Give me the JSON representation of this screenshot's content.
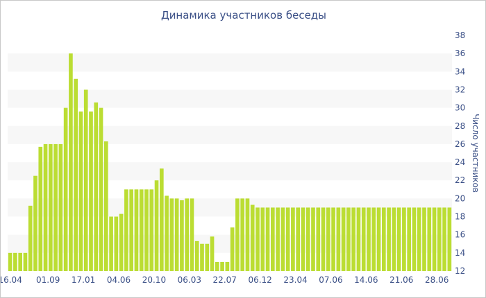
{
  "chart_data": {
    "type": "bar",
    "title": "Динамика участников беседы",
    "xlabel": "",
    "ylabel": "Число участников",
    "ylim": [
      12,
      38
    ],
    "y_ticks": [
      12,
      14,
      16,
      18,
      20,
      22,
      24,
      26,
      28,
      30,
      32,
      34,
      36,
      38
    ],
    "y_axis_side": "right",
    "grid": "alternating horizontal bands",
    "bar_color": "#bbdd33",
    "band_color": "#f7f7f7",
    "x_tick_labels": [
      "16.04",
      "01.09",
      "17.01",
      "04.06",
      "20.10",
      "06.03",
      "22.07",
      "06.12",
      "23.04",
      "07.06",
      "14.06",
      "21.06",
      "28.06"
    ],
    "x_tick_positions": [
      0,
      7.5,
      14.5,
      21.5,
      28.5,
      35.5,
      42.5,
      49.5,
      56.5,
      63.5,
      70.5,
      77.5,
      84.5
    ],
    "values": [
      14,
      14,
      14,
      14,
      19.2,
      22.5,
      25.7,
      26,
      26,
      26,
      26,
      30,
      36,
      33.2,
      29.6,
      32,
      29.6,
      30.6,
      30,
      26.3,
      18,
      18,
      18.3,
      21,
      21,
      21,
      21,
      21,
      21,
      22,
      23.3,
      20.3,
      20,
      20,
      19.8,
      20,
      20,
      15.3,
      15,
      15,
      15.8,
      13,
      13,
      13,
      16.8,
      20,
      20,
      20,
      19.3,
      19,
      19,
      19,
      19,
      19,
      19,
      19,
      19,
      19,
      19,
      19,
      19,
      19,
      19,
      19,
      19,
      19,
      19,
      19,
      19,
      19,
      19,
      19,
      19,
      19,
      19,
      19,
      19,
      19,
      19,
      19,
      19,
      19,
      19,
      19,
      19,
      19,
      19,
      19
    ]
  }
}
